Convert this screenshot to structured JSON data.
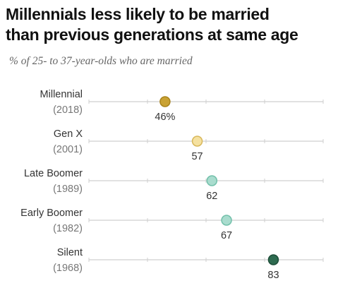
{
  "chart_data": {
    "type": "dot",
    "title_lines": [
      "Millennials less likely to be married",
      "than previous generations at same age"
    ],
    "subtitle": "% of 25- to 37-year-olds who are married",
    "xlim": [
      0,
      100
    ],
    "grid": false,
    "categories": [
      {
        "name": "Millennial",
        "year": "(2018)",
        "value": 46,
        "label": "46%",
        "color": "#C9A233",
        "stroke": "#A9841D"
      },
      {
        "name": "Gen X",
        "year": "(2001)",
        "value": 57,
        "label": "57",
        "color": "#F5E1A0",
        "stroke": "#D8B75A"
      },
      {
        "name": "Late Boomer",
        "year": "(1989)",
        "value": 62,
        "label": "62",
        "color": "#A9DCCE",
        "stroke": "#72C0AA"
      },
      {
        "name": "Early Boomer",
        "year": "(1982)",
        "value": 67,
        "label": "67",
        "color": "#A9DCCE",
        "stroke": "#72C0AA"
      },
      {
        "name": "Silent",
        "year": "(1968)",
        "value": 83,
        "label": "83",
        "color": "#2E6B50",
        "stroke": "#1D4D38"
      }
    ]
  }
}
